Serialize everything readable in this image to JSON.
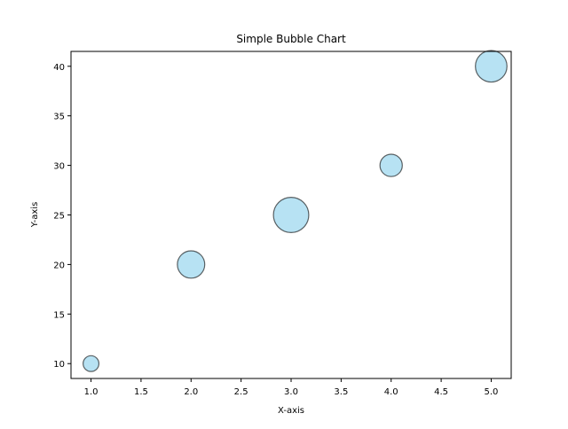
{
  "chart_data": {
    "type": "scatter",
    "subtype": "bubble",
    "title": "Simple Bubble Chart",
    "xlabel": "X-axis",
    "ylabel": "Y-axis",
    "xlim": [
      0.8,
      5.2
    ],
    "ylim": [
      8.5,
      41.5
    ],
    "xticks": [
      1.0,
      1.5,
      2.0,
      2.5,
      3.0,
      3.5,
      4.0,
      4.5,
      5.0
    ],
    "xtick_labels": [
      "1.0",
      "1.5",
      "2.0",
      "2.5",
      "3.0",
      "3.5",
      "4.0",
      "4.5",
      "5.0"
    ],
    "yticks": [
      10,
      15,
      20,
      25,
      30,
      35,
      40
    ],
    "ytick_labels": [
      "10",
      "15",
      "20",
      "25",
      "30",
      "35",
      "40"
    ],
    "grid": false,
    "legend": false,
    "points": [
      {
        "x": 1,
        "y": 10,
        "size": 100
      },
      {
        "x": 2,
        "y": 20,
        "size": 300
      },
      {
        "x": 3,
        "y": 25,
        "size": 500
      },
      {
        "x": 4,
        "y": 30,
        "size": 200
      },
      {
        "x": 5,
        "y": 40,
        "size": 400
      }
    ],
    "colors": {
      "bubble_fill": "#87ceeb",
      "bubble_edge": "#000000",
      "axes": "#000000"
    },
    "bubble_alpha": 0.6
  }
}
